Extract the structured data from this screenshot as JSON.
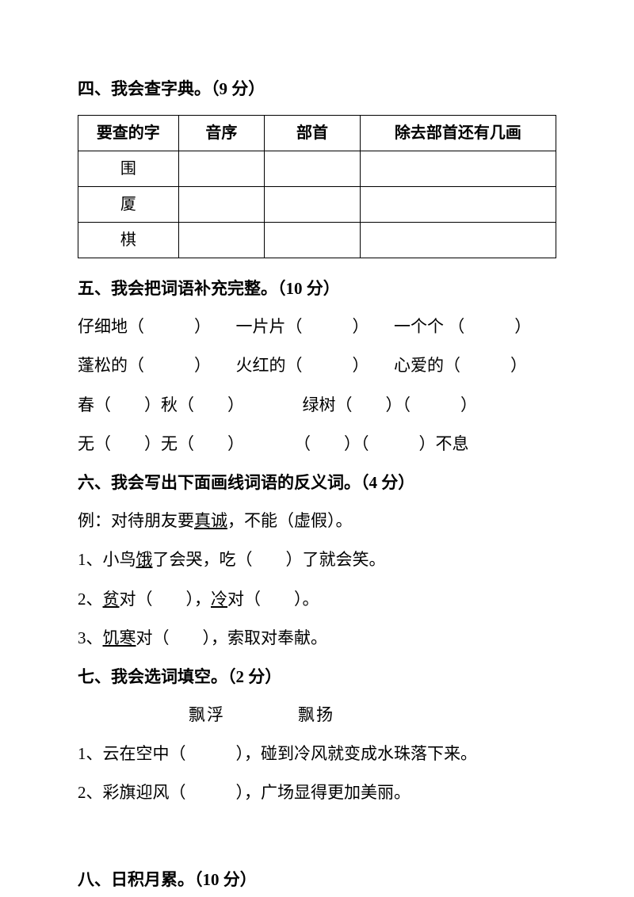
{
  "section4": {
    "title": "四、我会查字典。（9 分）",
    "headers": [
      "要查的字",
      "音序",
      "部首",
      "除去部首还有几画"
    ],
    "rows": [
      {
        "char": "围",
        "c2": "",
        "c3": "",
        "c4": ""
      },
      {
        "char": "厦",
        "c2": "",
        "c3": "",
        "c4": ""
      },
      {
        "char": "棋",
        "c2": "",
        "c3": "",
        "c4": ""
      }
    ]
  },
  "section5": {
    "title": "五、我会把词语补充完整。（10 分）",
    "line1": "仔细地（　　　）　　一片片（　　　）　　一个个 （　　　）",
    "line2": "蓬松的（　　　）　　火红的（　　　）　　心爱的（　　　）",
    "line3": "春（　　）秋（　　）　　　　绿树（　　）（　　　）",
    "line4": "无（　　）无（　　）　　　　（　　）（　　　）不息"
  },
  "section6": {
    "title": "六、我会写出下面画线词语的反义词。（4 分）",
    "example_pre": "例：对待朋友要",
    "example_underline": "真诚",
    "example_post": "，不能（虚假）。",
    "line1_pre": "1、小鸟",
    "line1_u": "饿",
    "line1_post": "了会哭，吃（　　）了就会笑。",
    "line2_pre": "2、",
    "line2_u1": "贫",
    "line2_mid": "对（　　），",
    "line2_u2": "冷",
    "line2_post": "对（　　）。",
    "line3_pre": "3、",
    "line3_u": "饥寒",
    "line3_post": "对（　　），索取对奉献。"
  },
  "section7": {
    "title": "七、我会选词填空。（2 分）",
    "options": "飘浮　　　　飘扬",
    "line1": "1、云在空中（　　　），碰到冷风就变成水珠落下来。",
    "line2": "2、彩旗迎风（　　　），广场显得更加美丽。"
  },
  "section8": {
    "title": "八、日积月累。（10 分）"
  }
}
